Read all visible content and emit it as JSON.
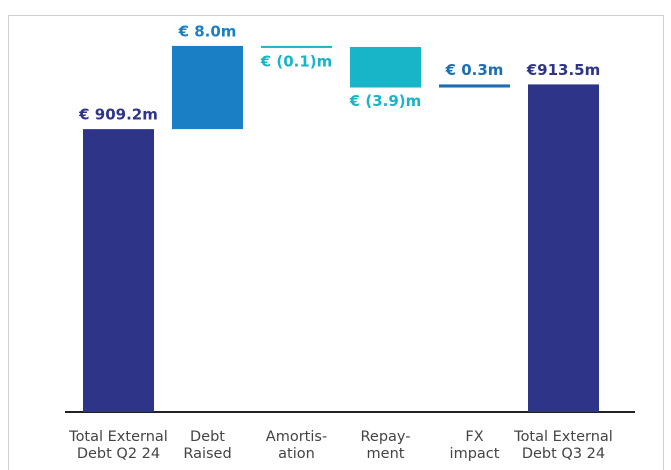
{
  "chart_data": {
    "type": "waterfall",
    "categories": [
      "Total External\nDebt Q2 24",
      "Debt\nRaised",
      "Amortis-\nation",
      "Repay-\nment",
      "FX\nimpact",
      "Total External\nDebt Q3 24"
    ],
    "values": [
      909.2,
      8.0,
      -0.1,
      -3.9,
      0.3,
      913.5
    ],
    "value_labels": [
      "€ 909.2m",
      "€ 8.0m",
      "€ (0.1)m",
      "€ (3.9)m",
      "€ 0.3m",
      "€913.5m"
    ],
    "measures": [
      "total",
      "relative",
      "relative",
      "relative",
      "relative",
      "total"
    ],
    "colors": [
      "#2e3488",
      "#1a7fc4",
      "#1ab3c8",
      "#17b5c7",
      "#1a6fb5",
      "#2e3488"
    ],
    "ylim": [
      882,
      917
    ]
  }
}
